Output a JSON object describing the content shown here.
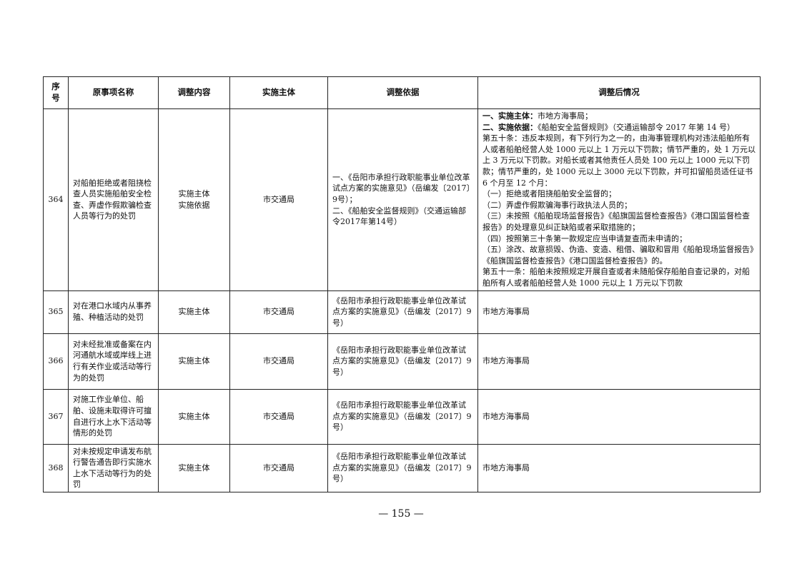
{
  "headers": [
    "序号",
    "原事项名称",
    "调整内容",
    "实施主体",
    "调整依据",
    "调整后情况"
  ],
  "rows": [
    {
      "no": "364",
      "name": "对船舶拒绝或者阻挠检查人员实施船舶安全检查、弄虚作假欺骗检查人员等行为的处罚",
      "content_lines": [
        "实施主体",
        "实施依据"
      ],
      "subject": "市交通局",
      "basis": "一、《岳阳市承担行政职能事业单位改革试点方案的实施意见》（岳编发〔2017〕9号）；\n二、《船舶安全监督规则》（交通运输部令2017年第14号）",
      "result": {
        "l1_label": "一、实施主体：",
        "l1_text": "市地方海事局；",
        "l2_label": "二、实施依据：",
        "l2_text": "《船舶安全监督规则》（交通运输部令 2017 年第 14 号）",
        "lines": [
          "第五十条：违反本规则，有下列行为之一的，由海事管理机构对违法船舶所有人或者船舶经营人处 1000 元以上 1 万元以下罚款；情节严重的，处 1 万元以上 3 万元以下罚款。对船长或者其他责任人员处 100 元以上 1000 元以下罚款；情节严重的，处 1000 元以上 3000 元以下罚款，并可扣留船员适任证书 6 个月至 12 个月：",
          "（一）拒绝或者阻挠船舶安全监督的；",
          "（二）弄虚作假欺骗海事行政执法人员的；",
          "（三）未按照《船舶现场监督报告》《船旗国监督检查报告》《港口国监督检查报告》的处理意见纠正缺陷或者采取措施的；",
          "（四）按照第三十条第一款规定应当申请复查而未申请的；",
          "（五）涂改、故意损毁、伪造、变造、租借、骗取和冒用《船舶现场监督报告》《船旗国监督检查报告》《港口国监督检查报告》的。",
          "第五十一条：船舶未按照规定开展自查或者未随船保存船舶自查记录的，对船舶所有人或者船舶经营人处 1000 元以上 1 万元以下罚款"
        ]
      }
    },
    {
      "no": "365",
      "name": "对在港口水域内从事养殖、种植活动的处罚",
      "content": "实施主体",
      "subject": "市交通局",
      "basis": "《岳阳市承担行政职能事业单位改革试点方案的实施意见》（岳编发〔2017〕9号）",
      "result": "市地方海事局"
    },
    {
      "no": "366",
      "name": "对未经批准或备案在内河通航水域或岸线上进行有关作业或活动等行为的处罚",
      "content": "实施主体",
      "subject": "市交通局",
      "basis": "《岳阳市承担行政职能事业单位改革试点方案的实施意见》（岳编发〔2017〕9号）",
      "result": "市地方海事局"
    },
    {
      "no": "367",
      "name": "对施工作业单位、船舶、设施未取得许可擅自进行水上水下活动等情形的处罚",
      "content": "实施主体",
      "subject": "市交通局",
      "basis": "《岳阳市承担行政职能事业单位改革试点方案的实施意见》（岳编发〔2017〕9号）",
      "result": "市地方海事局"
    },
    {
      "no": "368",
      "name": "对未按规定申请发布航行警告通告即行实施水上水下活动等行为的处罚",
      "content": "实施主体",
      "subject": "市交通局",
      "basis": "《岳阳市承担行政职能事业单位改革试点方案的实施意见》（岳编发〔2017〕9号）",
      "result": "市地方海事局"
    }
  ],
  "page_number": "— 155 —"
}
